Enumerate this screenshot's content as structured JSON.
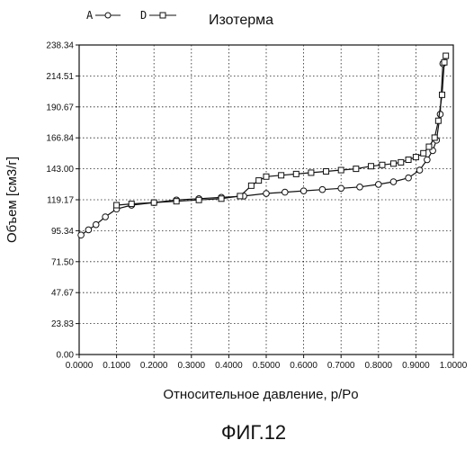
{
  "chart_data": {
    "type": "line",
    "title": "Изотерма",
    "xlabel": "Относительное давление, p/Po",
    "ylabel": "Объем [см3/г]",
    "caption": "ФИГ.12",
    "xlim": [
      0.0,
      1.0
    ],
    "ylim": [
      0.0,
      238.34
    ],
    "x_ticks": [
      "0.0000",
      "0.1000",
      "0.2000",
      "0.3000",
      "0.4000",
      "0.5000",
      "0.6000",
      "0.7000",
      "0.8000",
      "0.9000",
      "1.0000"
    ],
    "y_ticks": [
      "0.00",
      "23.83",
      "47.67",
      "71.50",
      "95.34",
      "119.17",
      "143.00",
      "166.84",
      "190.67",
      "214.51",
      "238.34"
    ],
    "grid": true,
    "legend_position": "top-left",
    "series": [
      {
        "name": "A",
        "marker": "circle",
        "x": [
          0.005,
          0.025,
          0.045,
          0.07,
          0.1,
          0.14,
          0.2,
          0.26,
          0.32,
          0.38,
          0.44,
          0.5,
          0.55,
          0.6,
          0.65,
          0.7,
          0.75,
          0.8,
          0.84,
          0.88,
          0.91,
          0.93,
          0.945,
          0.955,
          0.965,
          0.972
        ],
        "y": [
          92,
          96,
          100,
          106,
          112,
          115,
          117,
          119,
          120,
          121,
          122,
          124,
          125,
          126,
          127,
          128,
          129,
          131,
          133,
          136,
          142,
          150,
          157,
          165,
          185,
          224
        ]
      },
      {
        "name": "D",
        "marker": "square",
        "x": [
          0.1,
          0.14,
          0.2,
          0.26,
          0.32,
          0.38,
          0.43,
          0.46,
          0.48,
          0.5,
          0.54,
          0.58,
          0.62,
          0.66,
          0.7,
          0.74,
          0.78,
          0.81,
          0.84,
          0.86,
          0.88,
          0.9,
          0.92,
          0.935,
          0.95,
          0.96,
          0.97,
          0.976,
          0.98
        ],
        "y": [
          115,
          116,
          117,
          118,
          119,
          120,
          122,
          130,
          134,
          137,
          138,
          139,
          140,
          141,
          142,
          143,
          145,
          146,
          147,
          148,
          150,
          152,
          155,
          160,
          167,
          180,
          200,
          225,
          230
        ]
      }
    ]
  }
}
